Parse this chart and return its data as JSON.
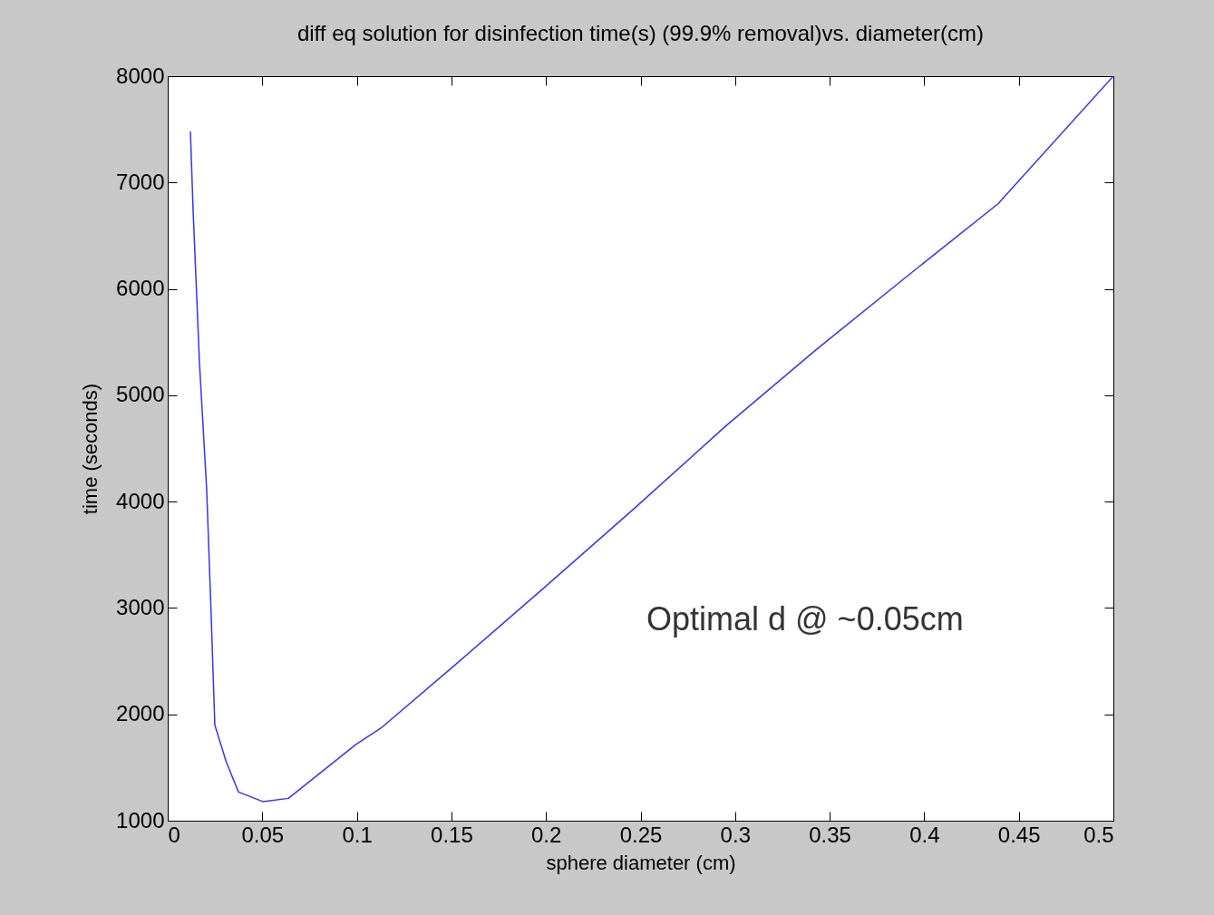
{
  "chart_data": {
    "type": "line",
    "title": "diff eq solution for disinfection time(s) (99.9% removal)vs. diameter(cm)",
    "xlabel": "sphere diameter (cm)",
    "ylabel": "time (seconds)",
    "x": [
      0.012,
      0.0134,
      0.0168,
      0.0206,
      0.023,
      0.0249,
      0.031,
      0.0374,
      0.0503,
      0.0638,
      0.0997,
      0.1127,
      0.151,
      0.199,
      0.247,
      0.295,
      0.343,
      0.391,
      0.439,
      0.5
    ],
    "series": [
      {
        "color": "#3333ff",
        "values": [
          7480,
          6750,
          5300,
          4110,
          2920,
          1900,
          1550,
          1270,
          1180,
          1210,
          1720,
          1870,
          2450,
          3190,
          3940,
          4710,
          5430,
          6120,
          6800,
          8000
        ]
      }
    ],
    "xlim": [
      0,
      0.5
    ],
    "xticks": [
      0,
      0.05,
      0.1,
      0.15,
      0.2,
      0.25,
      0.3,
      0.35,
      0.4,
      0.45,
      0.5
    ],
    "ylim": [
      1000,
      8000
    ],
    "yticks": [
      1000,
      2000,
      3000,
      4000,
      5000,
      6000,
      7000,
      8000
    ],
    "grid": false,
    "annotations": [
      "Optimal d @ ~0.05cm"
    ]
  }
}
